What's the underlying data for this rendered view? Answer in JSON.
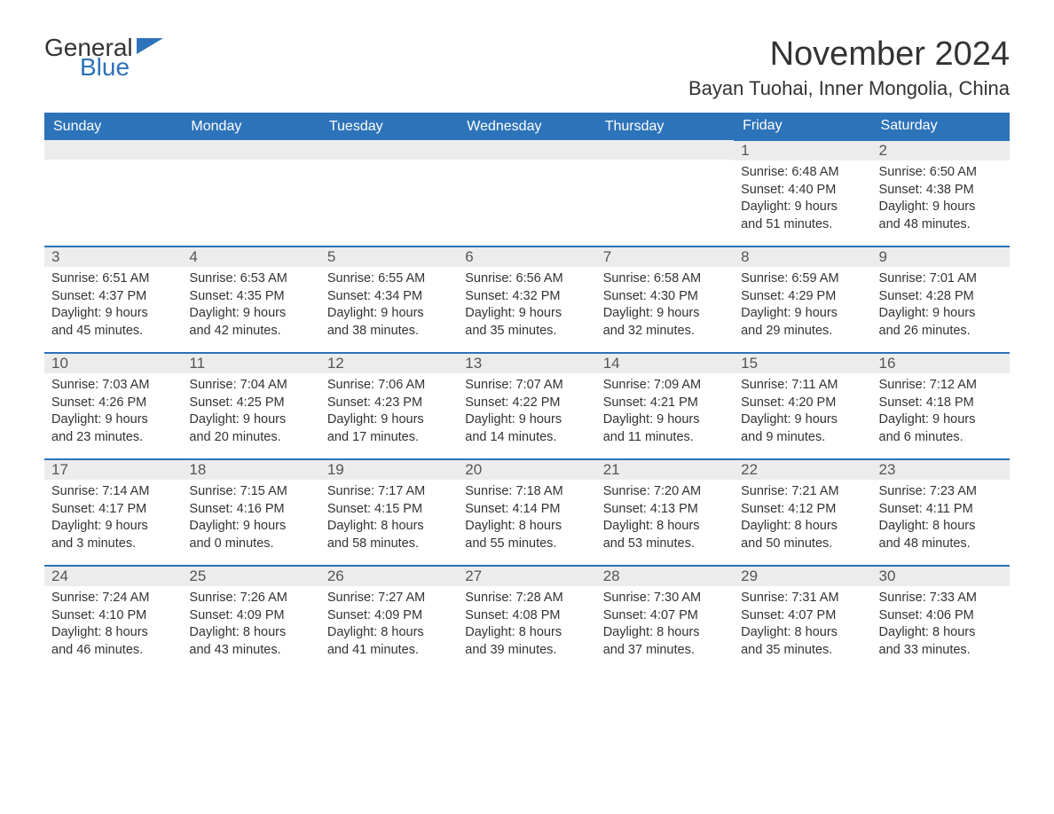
{
  "logo": {
    "general": "General",
    "blue": "Blue"
  },
  "title": "November 2024",
  "location": "Bayan Tuohai, Inner Mongolia, China",
  "colors": {
    "header_bg": "#2d73b9",
    "header_text": "#ffffff",
    "daynum_bg": "#ececec",
    "cell_border": "#2d73b9",
    "body_text": "#333333",
    "logo_blue": "#2d73b9"
  },
  "dayHeaders": [
    "Sunday",
    "Monday",
    "Tuesday",
    "Wednesday",
    "Thursday",
    "Friday",
    "Saturday"
  ],
  "weeks": [
    [
      null,
      null,
      null,
      null,
      null,
      {
        "n": "1",
        "sunrise": "Sunrise: 6:48 AM",
        "sunset": "Sunset: 4:40 PM",
        "day1": "Daylight: 9 hours",
        "day2": "and 51 minutes."
      },
      {
        "n": "2",
        "sunrise": "Sunrise: 6:50 AM",
        "sunset": "Sunset: 4:38 PM",
        "day1": "Daylight: 9 hours",
        "day2": "and 48 minutes."
      }
    ],
    [
      {
        "n": "3",
        "sunrise": "Sunrise: 6:51 AM",
        "sunset": "Sunset: 4:37 PM",
        "day1": "Daylight: 9 hours",
        "day2": "and 45 minutes."
      },
      {
        "n": "4",
        "sunrise": "Sunrise: 6:53 AM",
        "sunset": "Sunset: 4:35 PM",
        "day1": "Daylight: 9 hours",
        "day2": "and 42 minutes."
      },
      {
        "n": "5",
        "sunrise": "Sunrise: 6:55 AM",
        "sunset": "Sunset: 4:34 PM",
        "day1": "Daylight: 9 hours",
        "day2": "and 38 minutes."
      },
      {
        "n": "6",
        "sunrise": "Sunrise: 6:56 AM",
        "sunset": "Sunset: 4:32 PM",
        "day1": "Daylight: 9 hours",
        "day2": "and 35 minutes."
      },
      {
        "n": "7",
        "sunrise": "Sunrise: 6:58 AM",
        "sunset": "Sunset: 4:30 PM",
        "day1": "Daylight: 9 hours",
        "day2": "and 32 minutes."
      },
      {
        "n": "8",
        "sunrise": "Sunrise: 6:59 AM",
        "sunset": "Sunset: 4:29 PM",
        "day1": "Daylight: 9 hours",
        "day2": "and 29 minutes."
      },
      {
        "n": "9",
        "sunrise": "Sunrise: 7:01 AM",
        "sunset": "Sunset: 4:28 PM",
        "day1": "Daylight: 9 hours",
        "day2": "and 26 minutes."
      }
    ],
    [
      {
        "n": "10",
        "sunrise": "Sunrise: 7:03 AM",
        "sunset": "Sunset: 4:26 PM",
        "day1": "Daylight: 9 hours",
        "day2": "and 23 minutes."
      },
      {
        "n": "11",
        "sunrise": "Sunrise: 7:04 AM",
        "sunset": "Sunset: 4:25 PM",
        "day1": "Daylight: 9 hours",
        "day2": "and 20 minutes."
      },
      {
        "n": "12",
        "sunrise": "Sunrise: 7:06 AM",
        "sunset": "Sunset: 4:23 PM",
        "day1": "Daylight: 9 hours",
        "day2": "and 17 minutes."
      },
      {
        "n": "13",
        "sunrise": "Sunrise: 7:07 AM",
        "sunset": "Sunset: 4:22 PM",
        "day1": "Daylight: 9 hours",
        "day2": "and 14 minutes."
      },
      {
        "n": "14",
        "sunrise": "Sunrise: 7:09 AM",
        "sunset": "Sunset: 4:21 PM",
        "day1": "Daylight: 9 hours",
        "day2": "and 11 minutes."
      },
      {
        "n": "15",
        "sunrise": "Sunrise: 7:11 AM",
        "sunset": "Sunset: 4:20 PM",
        "day1": "Daylight: 9 hours",
        "day2": "and 9 minutes."
      },
      {
        "n": "16",
        "sunrise": "Sunrise: 7:12 AM",
        "sunset": "Sunset: 4:18 PM",
        "day1": "Daylight: 9 hours",
        "day2": "and 6 minutes."
      }
    ],
    [
      {
        "n": "17",
        "sunrise": "Sunrise: 7:14 AM",
        "sunset": "Sunset: 4:17 PM",
        "day1": "Daylight: 9 hours",
        "day2": "and 3 minutes."
      },
      {
        "n": "18",
        "sunrise": "Sunrise: 7:15 AM",
        "sunset": "Sunset: 4:16 PM",
        "day1": "Daylight: 9 hours",
        "day2": "and 0 minutes."
      },
      {
        "n": "19",
        "sunrise": "Sunrise: 7:17 AM",
        "sunset": "Sunset: 4:15 PM",
        "day1": "Daylight: 8 hours",
        "day2": "and 58 minutes."
      },
      {
        "n": "20",
        "sunrise": "Sunrise: 7:18 AM",
        "sunset": "Sunset: 4:14 PM",
        "day1": "Daylight: 8 hours",
        "day2": "and 55 minutes."
      },
      {
        "n": "21",
        "sunrise": "Sunrise: 7:20 AM",
        "sunset": "Sunset: 4:13 PM",
        "day1": "Daylight: 8 hours",
        "day2": "and 53 minutes."
      },
      {
        "n": "22",
        "sunrise": "Sunrise: 7:21 AM",
        "sunset": "Sunset: 4:12 PM",
        "day1": "Daylight: 8 hours",
        "day2": "and 50 minutes."
      },
      {
        "n": "23",
        "sunrise": "Sunrise: 7:23 AM",
        "sunset": "Sunset: 4:11 PM",
        "day1": "Daylight: 8 hours",
        "day2": "and 48 minutes."
      }
    ],
    [
      {
        "n": "24",
        "sunrise": "Sunrise: 7:24 AM",
        "sunset": "Sunset: 4:10 PM",
        "day1": "Daylight: 8 hours",
        "day2": "and 46 minutes."
      },
      {
        "n": "25",
        "sunrise": "Sunrise: 7:26 AM",
        "sunset": "Sunset: 4:09 PM",
        "day1": "Daylight: 8 hours",
        "day2": "and 43 minutes."
      },
      {
        "n": "26",
        "sunrise": "Sunrise: 7:27 AM",
        "sunset": "Sunset: 4:09 PM",
        "day1": "Daylight: 8 hours",
        "day2": "and 41 minutes."
      },
      {
        "n": "27",
        "sunrise": "Sunrise: 7:28 AM",
        "sunset": "Sunset: 4:08 PM",
        "day1": "Daylight: 8 hours",
        "day2": "and 39 minutes."
      },
      {
        "n": "28",
        "sunrise": "Sunrise: 7:30 AM",
        "sunset": "Sunset: 4:07 PM",
        "day1": "Daylight: 8 hours",
        "day2": "and 37 minutes."
      },
      {
        "n": "29",
        "sunrise": "Sunrise: 7:31 AM",
        "sunset": "Sunset: 4:07 PM",
        "day1": "Daylight: 8 hours",
        "day2": "and 35 minutes."
      },
      {
        "n": "30",
        "sunrise": "Sunrise: 7:33 AM",
        "sunset": "Sunset: 4:06 PM",
        "day1": "Daylight: 8 hours",
        "day2": "and 33 minutes."
      }
    ]
  ]
}
